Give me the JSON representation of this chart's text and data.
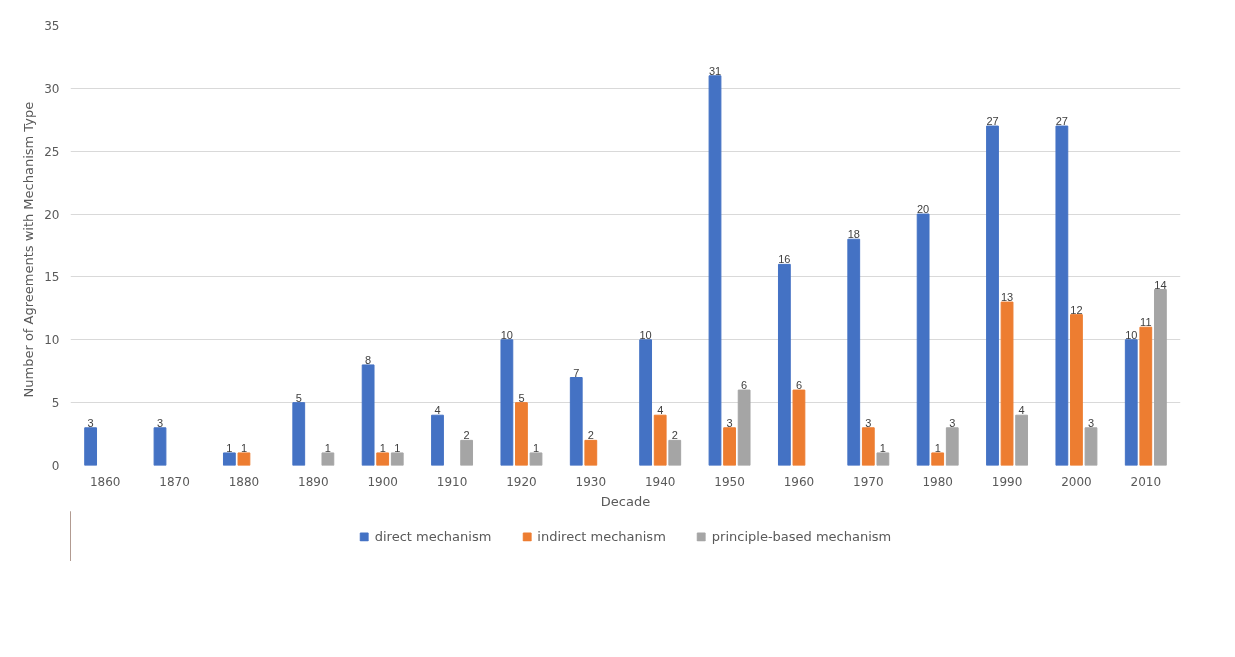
{
  "chart_data": {
    "type": "bar",
    "xlabel": "Decade",
    "ylabel": "Number  of Agreements  with Mechanism Type",
    "categories": [
      "1860",
      "1870",
      "1880",
      "1890",
      "1900",
      "1910",
      "1920",
      "1930",
      "1940",
      "1950",
      "1960",
      "1970",
      "1980",
      "1990",
      "2000",
      "2010"
    ],
    "series": [
      {
        "name": "direct mechanism",
        "color": "#4472c4",
        "values": [
          3,
          3,
          1,
          5,
          8,
          4,
          10,
          7,
          10,
          31,
          16,
          18,
          20,
          27,
          27,
          10
        ]
      },
      {
        "name": "indirect mechanism",
        "color": "#ed7d31",
        "values": [
          null,
          null,
          1,
          null,
          1,
          null,
          5,
          2,
          4,
          3,
          6,
          3,
          1,
          13,
          12,
          11
        ]
      },
      {
        "name": "principle-based mechanism",
        "color": "#a5a5a5",
        "values": [
          null,
          null,
          null,
          1,
          1,
          2,
          1,
          null,
          2,
          6,
          null,
          1,
          3,
          4,
          3,
          14
        ]
      }
    ],
    "ylim": [
      0,
      35
    ],
    "yticks": [
      0,
      5,
      10,
      15,
      20,
      25,
      30,
      35
    ],
    "grid": "y",
    "legend": "bottom",
    "data_labels": true
  }
}
